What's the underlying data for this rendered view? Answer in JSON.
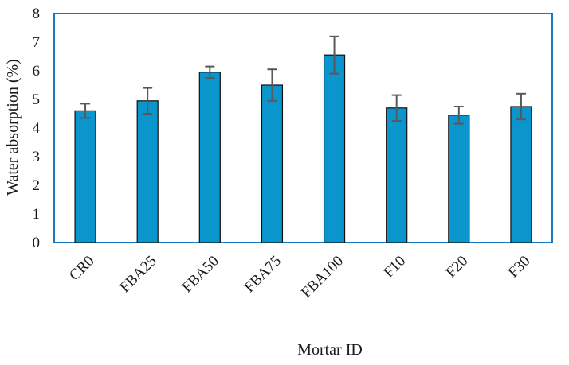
{
  "chart_data": {
    "type": "bar",
    "title": "",
    "xlabel": "Mortar ID",
    "ylabel": "Water absorption (%)",
    "ylim": [
      0,
      8
    ],
    "yticks": [
      0,
      1,
      2,
      3,
      4,
      5,
      6,
      7,
      8
    ],
    "categories": [
      "CR0",
      "FBA25",
      "FBA50",
      "FBA75",
      "FBA100",
      "F10",
      "F20",
      "F30"
    ],
    "values": [
      4.6,
      4.95,
      5.95,
      5.5,
      6.55,
      4.7,
      4.45,
      4.75
    ],
    "error": [
      0.25,
      0.45,
      0.2,
      0.55,
      0.65,
      0.45,
      0.3,
      0.45
    ],
    "grid": false,
    "legend": "none",
    "colors": {
      "bar": "#0a95cc",
      "bar_edge": "#111111",
      "frame": "#1778c2",
      "error_bar": "#595959"
    }
  }
}
